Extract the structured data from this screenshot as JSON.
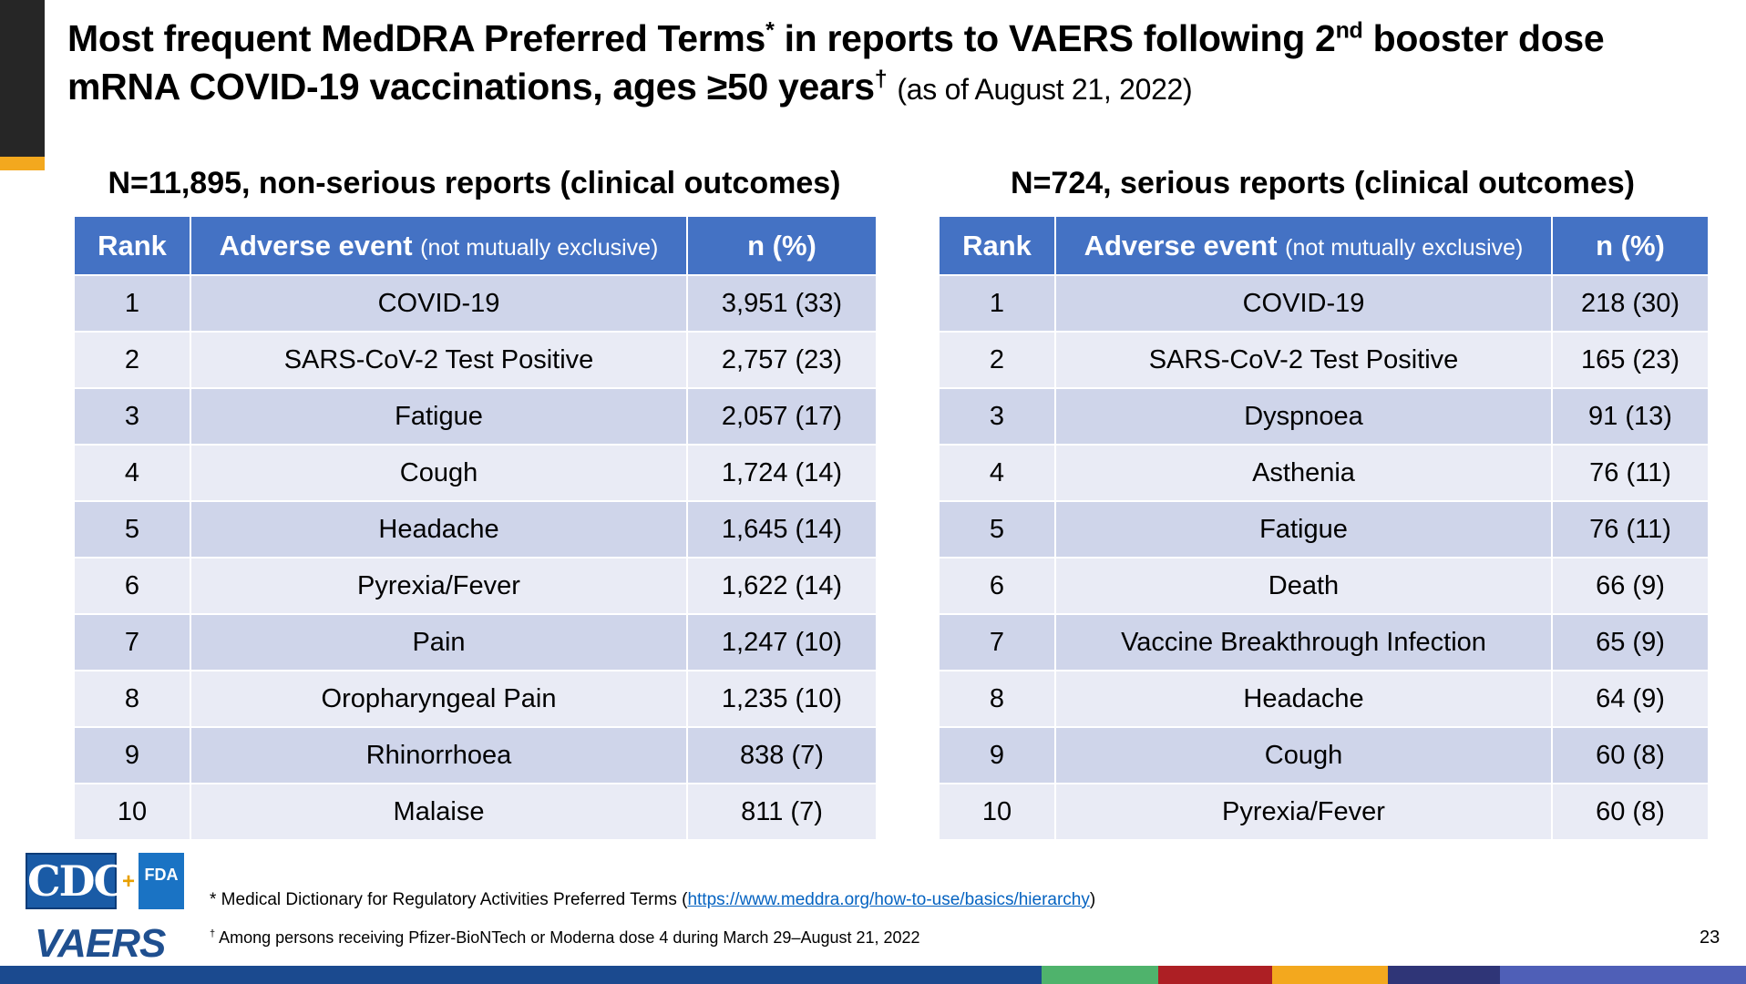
{
  "title": {
    "line1_a": "Most frequent MedDRA Preferred Terms",
    "line1_sup1": "*",
    "line1_b": " in reports to VAERS following 2",
    "line1_sup2": "nd",
    "line1_c": " booster dose",
    "line2_a": "mRNA COVID-19 vaccinations, ages ≥50 years",
    "line2_sup": "†",
    "as_of": "(as of August 21, 2022)"
  },
  "tables": [
    {
      "heading": "N=11,895, non-serious reports (clinical outcomes)",
      "col_rank": "Rank",
      "col_event": "Adverse event",
      "col_event_note": "(not mutually exclusive)",
      "col_n": "n (%)",
      "rows": [
        {
          "rank": "1",
          "event": "COVID-19",
          "n": "3,951 (33)"
        },
        {
          "rank": "2",
          "event": "SARS-CoV-2 Test Positive",
          "n": "2,757 (23)"
        },
        {
          "rank": "3",
          "event": "Fatigue",
          "n": "2,057 (17)"
        },
        {
          "rank": "4",
          "event": "Cough",
          "n": "1,724 (14)"
        },
        {
          "rank": "5",
          "event": "Headache",
          "n": "1,645 (14)"
        },
        {
          "rank": "6",
          "event": "Pyrexia/Fever",
          "n": "1,622 (14)"
        },
        {
          "rank": "7",
          "event": "Pain",
          "n": "1,247 (10)"
        },
        {
          "rank": "8",
          "event": "Oropharyngeal Pain",
          "n": "1,235 (10)"
        },
        {
          "rank": "9",
          "event": "Rhinorrhoea",
          "n": "838 (7)"
        },
        {
          "rank": "10",
          "event": "Malaise",
          "n": "811 (7)"
        }
      ]
    },
    {
      "heading": "N=724, serious reports (clinical outcomes)",
      "col_rank": "Rank",
      "col_event": "Adverse event",
      "col_event_note": "(not mutually exclusive)",
      "col_n": "n (%)",
      "rows": [
        {
          "rank": "1",
          "event": "COVID-19",
          "n": "218 (30)"
        },
        {
          "rank": "2",
          "event": "SARS-CoV-2 Test Positive",
          "n": "165 (23)"
        },
        {
          "rank": "3",
          "event": "Dyspnoea",
          "n": "91 (13)"
        },
        {
          "rank": "4",
          "event": "Asthenia",
          "n": "76 (11)"
        },
        {
          "rank": "5",
          "event": "Fatigue",
          "n": "76 (11)"
        },
        {
          "rank": "6",
          "event": "Death",
          "n": "66 (9)"
        },
        {
          "rank": "7",
          "event": "Vaccine Breakthrough Infection",
          "n": "65 (9)"
        },
        {
          "rank": "8",
          "event": "Headache",
          "n": "64 (9)"
        },
        {
          "rank": "9",
          "event": "Cough",
          "n": "60 (8)"
        },
        {
          "rank": "10",
          "event": "Pyrexia/Fever",
          "n": "60 (8)"
        }
      ]
    }
  ],
  "footnotes": {
    "fn1_prefix": "* Medical Dictionary for Regulatory Activities Preferred Terms (",
    "fn1_link": "https://www.meddra.org/how-to-use/basics/hierarchy",
    "fn1_suffix": ")",
    "fn2_sup": "†",
    "fn2_text": " Among persons receiving Pfizer-BioNTech or Moderna dose 4 during March 29–August 21, 2022"
  },
  "logos": {
    "cdc": "CDC",
    "plus": "+",
    "fda": "FDA",
    "vaers": "VAERS"
  },
  "page_number": "23",
  "colors": {
    "header_fill": "#4472c4",
    "row_dark": "#cfd5ea",
    "row_light": "#e9ebf5",
    "corner_dark": "#262626",
    "corner_accent": "#f3a81e",
    "bottom_bar": [
      "#1b4a8f",
      "#4fb36c",
      "#ad1f24",
      "#f3a81e",
      "#2f3577",
      "#4f5fb7"
    ]
  }
}
